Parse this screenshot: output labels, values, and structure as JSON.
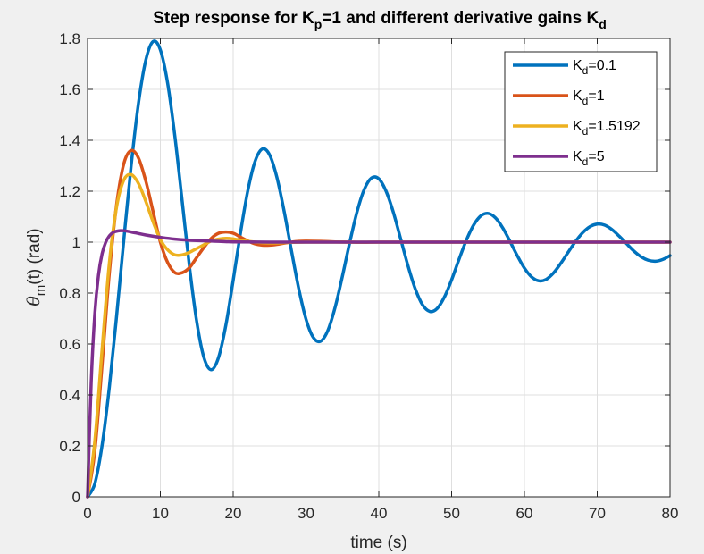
{
  "chart_data": {
    "type": "line",
    "title": {
      "main": "Step response for K",
      "sub1": "p",
      "mid": "=1 and different derivative gains K",
      "sub2": "d"
    },
    "xlabel": "time (s)",
    "ylabel": {
      "symbol": "θ",
      "sub": "m",
      "rest": "(t) (rad)"
    },
    "xlim": [
      0,
      80
    ],
    "ylim": [
      0,
      1.8
    ],
    "xticks": [
      0,
      10,
      20,
      30,
      40,
      50,
      60,
      70,
      80
    ],
    "yticks": [
      0,
      0.2,
      0.4,
      0.6,
      0.8,
      1,
      1.2,
      1.4,
      1.6,
      1.8
    ],
    "xtick_labels": [
      "0",
      "10",
      "20",
      "30",
      "40",
      "50",
      "60",
      "70",
      "80"
    ],
    "ytick_labels": [
      "0",
      "0.2",
      "0.4",
      "0.6",
      "0.8",
      "1",
      "1.2",
      "1.4",
      "1.6",
      "1.8"
    ],
    "grid": true,
    "legend_position": "top-right",
    "series": [
      {
        "name": "K_d=0.1",
        "legend": {
          "base": "K",
          "sub": "d",
          "rest": "=0.1"
        },
        "color": "#0072bd",
        "x": [
          0,
          1,
          2,
          3,
          4,
          5,
          6,
          7,
          8,
          9,
          10,
          11,
          12,
          13,
          14,
          15,
          16,
          17,
          18,
          19,
          20,
          21,
          22,
          23,
          24,
          25,
          26,
          27,
          28,
          29,
          30,
          31,
          32,
          33,
          34,
          35,
          36,
          37,
          38,
          39,
          40,
          41,
          42,
          43,
          44,
          45,
          46,
          47,
          48,
          49,
          50,
          51,
          52,
          53,
          54,
          55,
          56,
          57,
          58,
          59,
          60,
          61,
          62,
          63,
          64,
          65,
          66,
          67,
          68,
          69,
          70,
          71,
          72,
          73,
          74,
          75,
          76,
          77,
          78,
          79,
          80
        ],
        "y": [
          0,
          0.052,
          0.203,
          0.432,
          0.713,
          1.015,
          1.304,
          1.547,
          1.715,
          1.788,
          1.755,
          1.624,
          1.414,
          1.16,
          0.903,
          0.687,
          0.545,
          0.499,
          0.548,
          0.675,
          0.85,
          1.036,
          1.201,
          1.317,
          1.366,
          1.343,
          1.255,
          1.121,
          0.967,
          0.818,
          0.698,
          0.626,
          0.611,
          0.653,
          0.744,
          0.866,
          0.998,
          1.118,
          1.207,
          1.252,
          1.249,
          1.2,
          1.117,
          1.013,
          0.908,
          0.817,
          0.754,
          0.728,
          0.739,
          0.784,
          0.852,
          0.931,
          1.006,
          1.066,
          1.103,
          1.113,
          1.096,
          1.057,
          1.004,
          0.948,
          0.898,
          0.863,
          0.848,
          0.854,
          0.879,
          0.917,
          0.96,
          1.002,
          1.037,
          1.061,
          1.071,
          1.067,
          1.05,
          1.024,
          0.995,
          0.966,
          0.943,
          0.929,
          0.925,
          0.932,
          0.947
        ]
      },
      {
        "name": "K_d=1",
        "legend": {
          "base": "K",
          "sub": "d",
          "rest": "=1"
        },
        "color": "#d95319",
        "x": [
          0,
          1,
          2,
          3,
          4,
          5,
          6,
          7,
          8,
          9,
          10,
          11,
          12,
          13,
          14,
          15,
          16,
          17,
          18,
          19,
          20,
          21,
          22,
          23,
          24,
          25,
          26,
          27,
          28,
          29,
          30,
          32,
          34,
          36,
          38,
          40,
          45,
          50,
          55,
          60,
          65,
          70,
          75,
          80
        ],
        "y": [
          0,
          0.18,
          0.52,
          0.88,
          1.15,
          1.31,
          1.36,
          1.33,
          1.24,
          1.12,
          1.0,
          0.92,
          0.88,
          0.88,
          0.9,
          0.94,
          0.98,
          1.015,
          1.035,
          1.04,
          1.035,
          1.02,
          1.005,
          0.993,
          0.988,
          0.988,
          0.991,
          0.996,
          1.0,
          1.003,
          1.004,
          1.003,
          1.001,
          1.0,
          0.999,
          1.0,
          1.0,
          1.0,
          1.0,
          1.0,
          1.0,
          1.0,
          1.0,
          1.0
        ]
      },
      {
        "name": "K_d=1.5192",
        "legend": {
          "base": "K",
          "sub": "d",
          "rest": "=1.5192"
        },
        "color": "#edb120",
        "x": [
          0,
          1,
          2,
          3,
          4,
          5,
          6,
          7,
          8,
          9,
          10,
          11,
          12,
          13,
          14,
          15,
          16,
          17,
          18,
          19,
          20,
          21,
          22,
          24,
          26,
          28,
          30,
          35,
          40,
          50,
          60,
          70,
          80
        ],
        "y": [
          0,
          0.22,
          0.58,
          0.92,
          1.14,
          1.245,
          1.265,
          1.23,
          1.16,
          1.08,
          1.01,
          0.97,
          0.95,
          0.95,
          0.96,
          0.975,
          0.99,
          1.005,
          1.012,
          1.015,
          1.013,
          1.008,
          1.003,
          0.998,
          0.997,
          0.999,
          1.0,
          1.0,
          1.0,
          1.0,
          1.0,
          1.0,
          1.0
        ]
      },
      {
        "name": "K_d=5",
        "legend": {
          "base": "K",
          "sub": "d",
          "rest": "=5"
        },
        "color": "#7e2f8e",
        "x": [
          0,
          0.5,
          1,
          1.5,
          2,
          2.5,
          3,
          3.5,
          4,
          4.5,
          5,
          6,
          7,
          8,
          10,
          12,
          15,
          18,
          20,
          25,
          30,
          40,
          50,
          60,
          70,
          80
        ],
        "y": [
          0,
          0.45,
          0.72,
          0.87,
          0.955,
          1.0,
          1.025,
          1.038,
          1.043,
          1.045,
          1.045,
          1.04,
          1.034,
          1.028,
          1.019,
          1.012,
          1.006,
          1.003,
          1.001,
          1.0,
          1.0,
          1.0,
          1.0,
          1.0,
          1.0,
          1.0
        ]
      }
    ]
  }
}
